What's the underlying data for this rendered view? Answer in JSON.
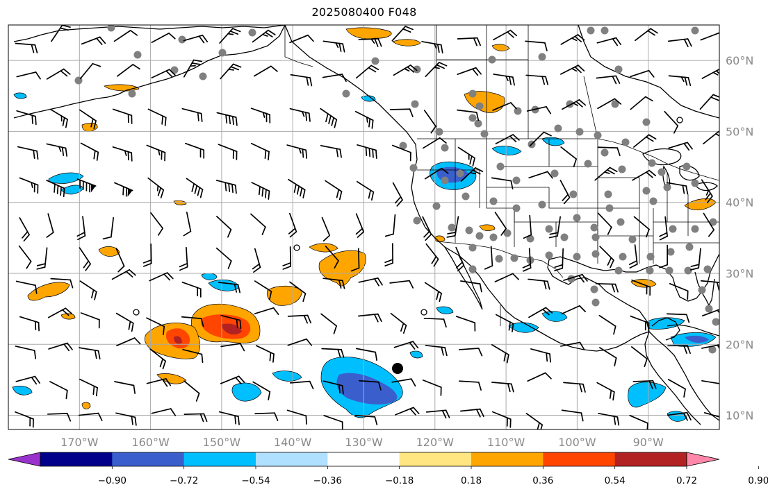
{
  "title": "2025080400 F048",
  "map": {
    "projection": "plate-carree",
    "lon_range": [
      -180,
      -80
    ],
    "lat_range": [
      8,
      65
    ],
    "gridlines": true,
    "lon_ticks": [
      -170,
      -160,
      -150,
      -140,
      -130,
      -120,
      -110,
      -100,
      -90
    ],
    "lat_ticks": [
      10,
      20,
      30,
      40,
      50,
      60
    ],
    "lon_labels": [
      "170°W",
      "160°W",
      "150°W",
      "140°W",
      "130°W",
      "120°W",
      "110°W",
      "100°W",
      "90°W"
    ],
    "lat_labels": [
      "10°N",
      "20°N",
      "30°N",
      "40°N",
      "50°N",
      "60°N"
    ],
    "features": [
      "coastlines",
      "country-borders",
      "us-state-borders",
      "canada-province-borders",
      "wind-barbs",
      "grey-station-dots",
      "filled-contours"
    ]
  },
  "colorbar": {
    "orientation": "horizontal",
    "extend": "both",
    "tick_labels": [
      "−0.90",
      "−0.72",
      "−0.54",
      "−0.36",
      "−0.18",
      "0.18",
      "0.36",
      "0.54",
      "0.72",
      "0.90"
    ],
    "colors": [
      "#9932cc",
      "#00008b",
      "#3a5fcd",
      "#00bfff",
      "#b0e0ff",
      "#ffffff",
      "#ffe680",
      "#ffa500",
      "#ff4500",
      "#b22222",
      "#ff88aa"
    ]
  },
  "markers": {
    "large_black_dot": {
      "lon": -125.5,
      "lat": 16.5
    }
  }
}
